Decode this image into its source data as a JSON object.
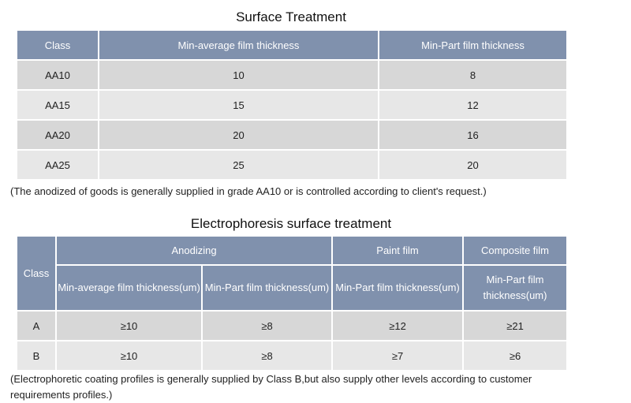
{
  "table1": {
    "title": "Surface Treatment",
    "headers": [
      "Class",
      "Min-average film thickness",
      "Min-Part film thickness"
    ],
    "rows": [
      [
        "AA10",
        "10",
        "8"
      ],
      [
        "AA15",
        "15",
        "12"
      ],
      [
        "AA20",
        "20",
        "16"
      ],
      [
        "AA25",
        "25",
        "20"
      ]
    ],
    "note": "(The anodized of goods is generally supplied in grade AA10 or is controlled according to client's request.)"
  },
  "table2": {
    "title": "Electrophoresis surface treatment",
    "class_header": "Class",
    "group_headers": [
      "Anodizing",
      "Paint film",
      "Composite film"
    ],
    "sub_headers": [
      "Min-average film thickness(um)",
      "Min-Part film thickness(um)",
      "Min-Part film thickness(um)",
      "Min-Part film thickness(um)"
    ],
    "rows": [
      [
        "A",
        "≥10",
        "≥8",
        "≥12",
        "≥21"
      ],
      [
        "B",
        "≥10",
        "≥8",
        "≥7",
        "≥6"
      ]
    ],
    "note": "(Electrophoretic coating profiles is generally supplied by Class B,but also supply other levels according to customer requirements profiles.)"
  },
  "colors": {
    "header_bg": "#8091ad",
    "row_odd_bg": "#d7d7d7",
    "row_even_bg": "#e7e7e7"
  }
}
